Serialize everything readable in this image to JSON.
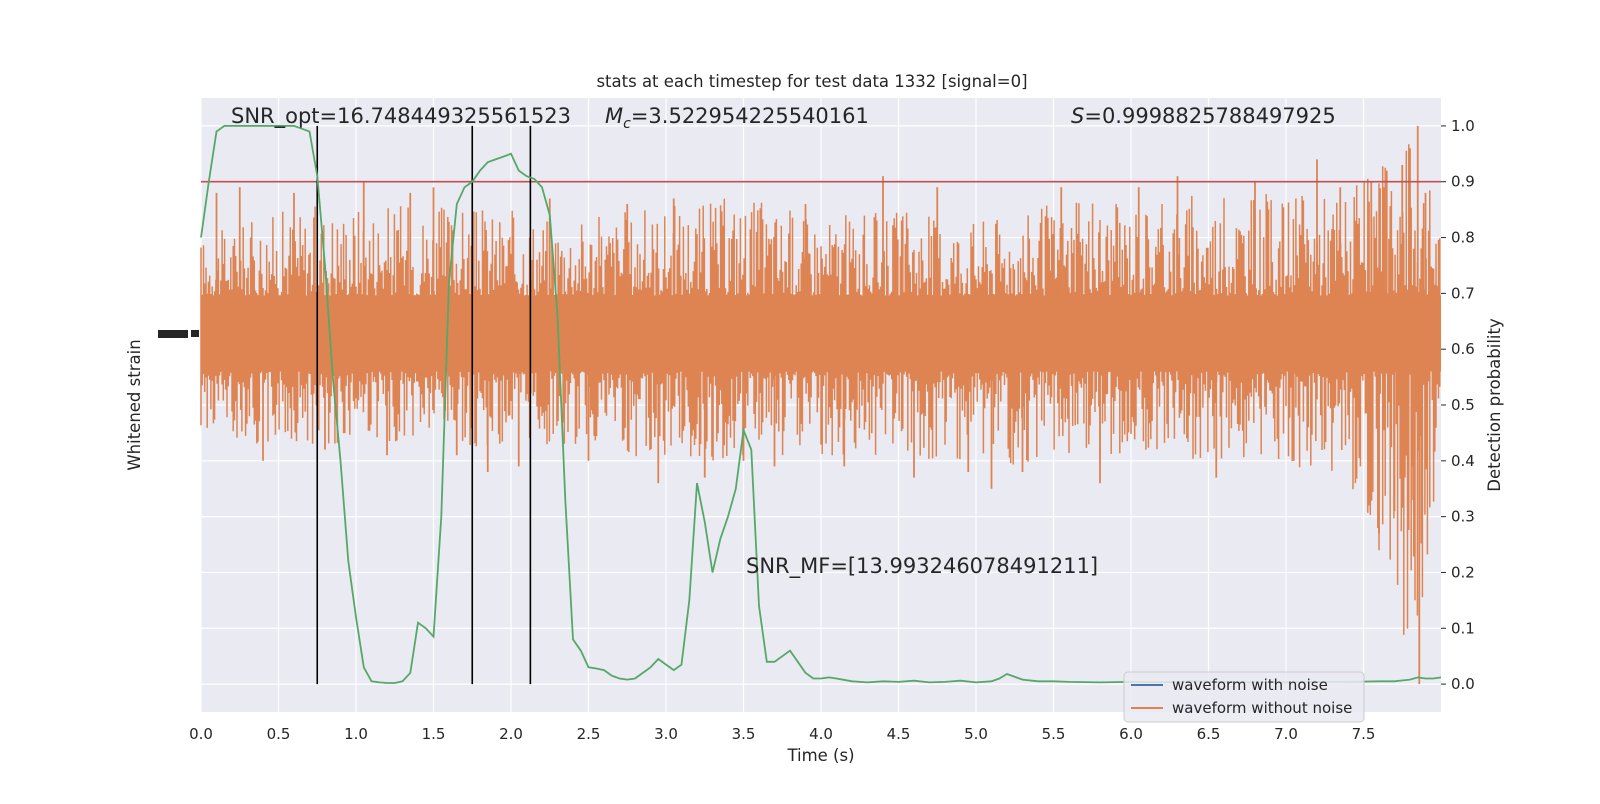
{
  "chart_data": {
    "type": "line",
    "title": "stats at each timestep for test data 1332 [signal=0]",
    "xlabel": "Time (s)",
    "ylabel_left": "Whitened strain",
    "ylabel_right": "Detection probability",
    "xlim": [
      0,
      8.0
    ],
    "ylim_right": [
      -0.05,
      1.05
    ],
    "x_ticks": [
      "0.0",
      "0.5",
      "1.0",
      "1.5",
      "2.0",
      "2.5",
      "3.0",
      "3.5",
      "4.0",
      "4.5",
      "5.0",
      "5.5",
      "6.0",
      "6.5",
      "7.0",
      "7.5"
    ],
    "y_ticks_right": [
      "0.0",
      "0.1",
      "0.2",
      "0.3",
      "0.4",
      "0.5",
      "0.6",
      "0.7",
      "0.8",
      "0.9",
      "1.0"
    ],
    "grid": true,
    "legend_position": "lower-right",
    "annotations": {
      "snr_opt": "SNR_opt=16.748449325561523",
      "mc_symbol": "M",
      "mc_sub": "c",
      "mc_value": "=3.522954225540161",
      "s_symbol": "S",
      "s_value": "=0.9998825788497925",
      "snr_mf": "SNR_MF=[13.993246078491211]"
    },
    "threshold": 0.9,
    "vertical_lines_x": [
      0.75,
      1.75,
      2.125
    ],
    "series": [
      {
        "name": "waveform with noise",
        "color": "#4c72b0",
        "note_values": []
      },
      {
        "name": "waveform without noise",
        "color": "#dd8452",
        "band_center": 0.628,
        "band_half_width": 0.068,
        "envelope_upper": [
          [
            0.0,
            0.8
          ],
          [
            0.5,
            0.85
          ],
          [
            1.0,
            0.87
          ],
          [
            1.5,
            0.86
          ],
          [
            2.0,
            0.85
          ],
          [
            2.5,
            0.84
          ],
          [
            3.0,
            0.86
          ],
          [
            3.5,
            0.88
          ],
          [
            4.0,
            0.84
          ],
          [
            4.5,
            0.85
          ],
          [
            5.0,
            0.84
          ],
          [
            5.5,
            0.86
          ],
          [
            6.0,
            0.87
          ],
          [
            6.5,
            0.88
          ],
          [
            7.0,
            0.88
          ],
          [
            7.5,
            0.9
          ],
          [
            7.85,
            1.0
          ],
          [
            8.0,
            0.8
          ]
        ],
        "envelope_lower": [
          [
            0.0,
            0.45
          ],
          [
            0.5,
            0.42
          ],
          [
            1.0,
            0.43
          ],
          [
            1.5,
            0.42
          ],
          [
            2.0,
            0.42
          ],
          [
            2.5,
            0.42
          ],
          [
            3.0,
            0.4
          ],
          [
            3.5,
            0.4
          ],
          [
            4.0,
            0.4
          ],
          [
            4.5,
            0.41
          ],
          [
            5.0,
            0.38
          ],
          [
            5.5,
            0.4
          ],
          [
            6.0,
            0.41
          ],
          [
            6.5,
            0.4
          ],
          [
            7.0,
            0.4
          ],
          [
            7.5,
            0.33
          ],
          [
            7.85,
            0.0
          ],
          [
            8.0,
            0.45
          ]
        ],
        "spikes": [
          [
            0.1,
            0.88
          ],
          [
            0.25,
            0.89
          ],
          [
            0.4,
            0.4
          ],
          [
            0.6,
            0.88
          ],
          [
            0.8,
            0.42
          ],
          [
            1.05,
            0.9
          ],
          [
            1.2,
            0.41
          ],
          [
            1.35,
            0.88
          ],
          [
            1.5,
            0.89
          ],
          [
            1.65,
            0.41
          ],
          [
            1.85,
            0.38
          ],
          [
            2.05,
            0.39
          ],
          [
            2.25,
            0.87
          ],
          [
            2.5,
            0.4
          ],
          [
            2.75,
            0.86
          ],
          [
            2.95,
            0.36
          ],
          [
            3.05,
            0.87
          ],
          [
            3.25,
            0.37
          ],
          [
            3.5,
            0.4
          ],
          [
            3.7,
            0.39
          ],
          [
            3.9,
            0.86
          ],
          [
            4.15,
            0.39
          ],
          [
            4.4,
            0.91
          ],
          [
            4.6,
            0.37
          ],
          [
            4.75,
            0.89
          ],
          [
            4.95,
            0.38
          ],
          [
            5.1,
            0.35
          ],
          [
            5.3,
            0.38
          ],
          [
            5.55,
            0.89
          ],
          [
            5.8,
            0.36
          ],
          [
            6.05,
            0.89
          ],
          [
            6.3,
            0.91
          ],
          [
            6.55,
            0.37
          ],
          [
            6.8,
            0.9
          ],
          [
            7.05,
            0.4
          ],
          [
            7.2,
            0.94
          ],
          [
            7.35,
            0.89
          ],
          [
            7.55,
            0.9
          ],
          [
            7.6,
            0.27
          ],
          [
            7.65,
            0.92
          ],
          [
            7.7,
            0.31
          ],
          [
            7.75,
            0.93
          ],
          [
            7.8,
            0.96
          ],
          [
            7.82,
            0.33
          ],
          [
            7.85,
            1.0
          ],
          [
            7.86,
            0.0
          ],
          [
            7.9,
            0.88
          ]
        ]
      },
      {
        "name": "detection probability",
        "color": "#55a868",
        "x": [
          0.0,
          0.05,
          0.1,
          0.15,
          0.2,
          0.3,
          0.4,
          0.5,
          0.55,
          0.6,
          0.65,
          0.7,
          0.75,
          0.8,
          0.85,
          0.9,
          0.95,
          1.0,
          1.05,
          1.1,
          1.15,
          1.2,
          1.25,
          1.3,
          1.35,
          1.4,
          1.45,
          1.5,
          1.55,
          1.6,
          1.65,
          1.7,
          1.75,
          1.8,
          1.85,
          1.9,
          1.95,
          2.0,
          2.05,
          2.1,
          2.15,
          2.2,
          2.25,
          2.3,
          2.35,
          2.4,
          2.45,
          2.5,
          2.55,
          2.6,
          2.65,
          2.7,
          2.75,
          2.8,
          2.85,
          2.9,
          2.95,
          3.0,
          3.05,
          3.1,
          3.15,
          3.2,
          3.25,
          3.3,
          3.35,
          3.4,
          3.45,
          3.5,
          3.55,
          3.6,
          3.65,
          3.7,
          3.75,
          3.8,
          3.85,
          3.9,
          3.95,
          4.0,
          4.05,
          4.1,
          4.2,
          4.3,
          4.4,
          4.5,
          4.6,
          4.7,
          4.8,
          4.9,
          5.0,
          5.1,
          5.15,
          5.2,
          5.3,
          5.4,
          5.5,
          5.6,
          5.8,
          6.0,
          6.2,
          6.4,
          6.6,
          6.8,
          7.0,
          7.2,
          7.4,
          7.6,
          7.7,
          7.8,
          7.85,
          7.9,
          7.95,
          8.0
        ],
        "values": [
          0.8,
          0.9,
          0.99,
          1.0,
          1.0,
          1.0,
          1.0,
          1.0,
          1.0,
          1.0,
          0.995,
          0.99,
          0.91,
          0.75,
          0.55,
          0.4,
          0.22,
          0.12,
          0.03,
          0.005,
          0.003,
          0.002,
          0.002,
          0.005,
          0.02,
          0.11,
          0.1,
          0.085,
          0.3,
          0.72,
          0.86,
          0.89,
          0.9,
          0.92,
          0.935,
          0.94,
          0.945,
          0.95,
          0.92,
          0.91,
          0.905,
          0.89,
          0.84,
          0.66,
          0.33,
          0.08,
          0.06,
          0.03,
          0.028,
          0.025,
          0.015,
          0.01,
          0.008,
          0.01,
          0.02,
          0.03,
          0.045,
          0.035,
          0.025,
          0.035,
          0.15,
          0.36,
          0.29,
          0.2,
          0.26,
          0.3,
          0.35,
          0.455,
          0.42,
          0.14,
          0.04,
          0.04,
          0.05,
          0.06,
          0.04,
          0.02,
          0.01,
          0.01,
          0.012,
          0.01,
          0.005,
          0.003,
          0.005,
          0.004,
          0.006,
          0.003,
          0.004,
          0.006,
          0.003,
          0.005,
          0.01,
          0.018,
          0.008,
          0.005,
          0.005,
          0.004,
          0.003,
          0.004,
          0.003,
          0.005,
          0.004,
          0.003,
          0.003,
          0.004,
          0.004,
          0.005,
          0.005,
          0.008,
          0.012,
          0.01,
          0.01,
          0.012
        ]
      }
    ]
  }
}
